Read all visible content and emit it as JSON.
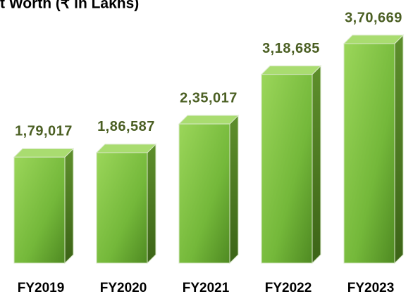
{
  "chart_data": {
    "type": "bar3d",
    "title": "t Worth (₹  in Lakhs)",
    "categories": [
      "FY2019",
      "FY2020",
      "FY2021",
      "FY2022",
      "FY2023"
    ],
    "values": [
      179017,
      186587,
      235017,
      318685,
      370669
    ],
    "value_labels": [
      "1,79,017",
      "1,86,587",
      "2,35,017",
      "3,18,685",
      "3,70,669"
    ],
    "color": "#7cc242"
  }
}
